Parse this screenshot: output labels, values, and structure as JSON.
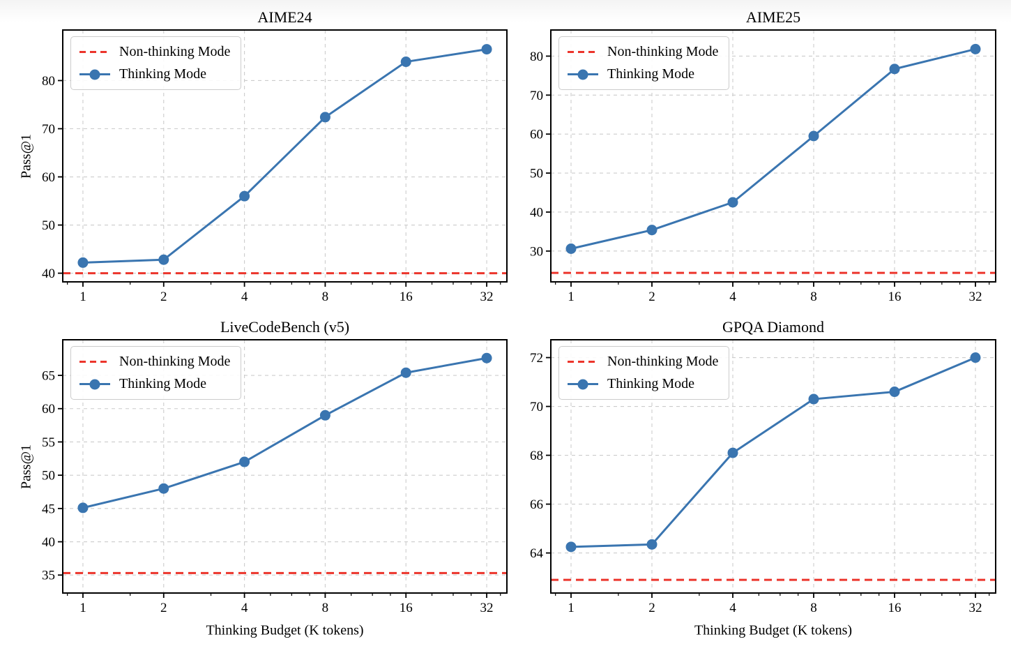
{
  "page": {
    "background": "#ffffff"
  },
  "shared": {
    "xlabel": "Thinking Budget (K tokens)",
    "ylabel": "Pass@1",
    "legend": {
      "non_thinking": "Non-thinking Mode",
      "thinking": "Thinking Mode"
    },
    "colors": {
      "thinking_line": "#3a75b0",
      "non_thinking_line": "#ec352c",
      "grid": "#cccccc",
      "spine": "#000000",
      "text": "#000000"
    }
  },
  "x_axis": {
    "scale": "log2",
    "major_ticks": [
      1,
      2,
      4,
      8,
      16,
      32
    ],
    "minor_ticks": [
      0.875,
      1.5,
      3,
      5,
      6,
      7,
      10,
      12,
      14,
      20,
      24,
      28,
      36
    ]
  },
  "chart_data": [
    {
      "type": "line",
      "title": "AIME24",
      "xlabel": "",
      "ylabel": "Pass@1",
      "x": [
        1,
        2,
        4,
        8,
        16,
        32
      ],
      "xlim": [
        0.8409,
        38.0546
      ],
      "series": [
        {
          "name": "Non-thinking Mode",
          "style": "horizontal-dashed",
          "value": 40.0
        },
        {
          "name": "Thinking Mode",
          "style": "line-markers",
          "values": [
            42.2,
            42.8,
            56.0,
            72.4,
            83.9,
            86.5
          ]
        }
      ],
      "yticks": [
        40,
        50,
        60,
        70,
        80
      ],
      "ylim": [
        38.2,
        90.5
      ],
      "grid": true,
      "legend_position": "upper left",
      "show_ylabel": true,
      "show_xlabel": false
    },
    {
      "type": "line",
      "title": "AIME25",
      "xlabel": "",
      "ylabel": "",
      "x": [
        1,
        2,
        4,
        8,
        16,
        32
      ],
      "xlim": [
        0.8409,
        38.0546
      ],
      "series": [
        {
          "name": "Non-thinking Mode",
          "style": "horizontal-dashed",
          "value": 24.4
        },
        {
          "name": "Thinking Mode",
          "style": "line-markers",
          "values": [
            30.6,
            35.4,
            42.5,
            59.5,
            76.7,
            81.8
          ]
        }
      ],
      "yticks": [
        30,
        40,
        50,
        60,
        70,
        80
      ],
      "ylim": [
        22.1,
        86.7
      ],
      "grid": true,
      "legend_position": "upper left",
      "show_ylabel": false,
      "show_xlabel": false
    },
    {
      "type": "line",
      "title": "LiveCodeBench (v5)",
      "xlabel": "Thinking Budget (K tokens)",
      "ylabel": "Pass@1",
      "x": [
        1,
        2,
        4,
        8,
        16,
        32
      ],
      "xlim": [
        0.8409,
        38.0546
      ],
      "series": [
        {
          "name": "Non-thinking Mode",
          "style": "horizontal-dashed",
          "value": 35.3
        },
        {
          "name": "Thinking Mode",
          "style": "line-markers",
          "values": [
            45.1,
            48.0,
            52.0,
            59.0,
            65.4,
            67.6
          ]
        }
      ],
      "yticks": [
        35,
        40,
        45,
        50,
        55,
        60,
        65
      ],
      "ylim": [
        32.3,
        70.35
      ],
      "grid": true,
      "legend_position": "upper left",
      "show_ylabel": true,
      "show_xlabel": true
    },
    {
      "type": "line",
      "title": "GPQA Diamond",
      "xlabel": "Thinking Budget (K tokens)",
      "ylabel": "",
      "x": [
        1,
        2,
        4,
        8,
        16,
        32
      ],
      "xlim": [
        0.8409,
        38.0546
      ],
      "series": [
        {
          "name": "Non-thinking Mode",
          "style": "horizontal-dashed",
          "value": 62.9
        },
        {
          "name": "Thinking Mode",
          "style": "line-markers",
          "values": [
            64.25,
            64.35,
            68.1,
            70.3,
            70.6,
            72.0
          ]
        }
      ],
      "yticks": [
        64,
        66,
        68,
        70,
        72
      ],
      "ylim": [
        62.36,
        72.73
      ],
      "grid": true,
      "legend_position": "upper left",
      "show_ylabel": false,
      "show_xlabel": true
    }
  ]
}
